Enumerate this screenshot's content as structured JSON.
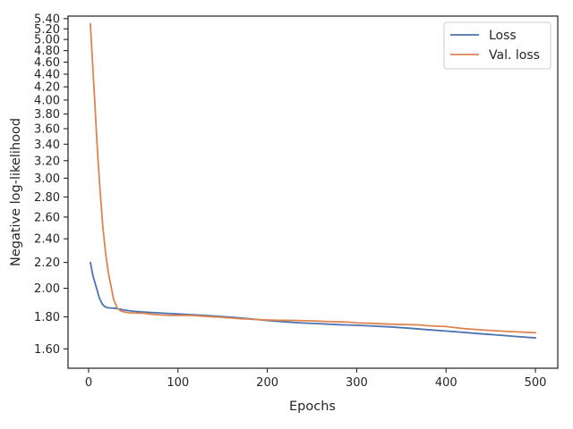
{
  "chart_data": {
    "type": "line",
    "title": "",
    "xlabel": "Epochs",
    "ylabel": "Negative log-likelihood",
    "yscale": "log",
    "xlim": [
      -23,
      525
    ],
    "ylim": [
      1.49,
      5.45
    ],
    "x_ticks": [
      0,
      100,
      200,
      300,
      400,
      500
    ],
    "x_tick_labels": [
      "0",
      "100",
      "200",
      "300",
      "400",
      "500"
    ],
    "y_ticks": [
      1.6,
      1.8,
      2.0,
      2.2,
      2.4,
      2.6,
      2.8,
      3.0,
      3.2,
      3.4,
      3.6,
      3.8,
      4.0,
      4.2,
      4.4,
      4.6,
      4.8,
      5.0,
      5.2,
      5.4
    ],
    "y_tick_labels": [
      "1.60",
      "1.80",
      "2.00",
      "2.20",
      "2.40",
      "2.60",
      "2.80",
      "3.00",
      "3.20",
      "3.40",
      "3.60",
      "3.80",
      "4.00",
      "4.20",
      "4.40",
      "4.60",
      "4.80",
      "5.00",
      "5.20",
      "5.40"
    ],
    "grid": false,
    "legend_position": "top-right",
    "series": [
      {
        "name": "Loss",
        "color": "#4c72b0",
        "x": [
          2,
          5,
          9,
          12,
          15,
          18,
          21,
          25,
          30,
          35,
          40,
          50,
          60,
          75,
          90,
          100,
          120,
          140,
          160,
          180,
          200,
          220,
          240,
          260,
          280,
          300,
          320,
          340,
          360,
          380,
          400,
          420,
          440,
          460,
          480,
          500
        ],
        "y": [
          2.2,
          2.09,
          2.0,
          1.93,
          1.89,
          1.87,
          1.862,
          1.86,
          1.858,
          1.852,
          1.846,
          1.838,
          1.833,
          1.828,
          1.823,
          1.82,
          1.813,
          1.806,
          1.798,
          1.788,
          1.776,
          1.767,
          1.76,
          1.755,
          1.749,
          1.745,
          1.74,
          1.734,
          1.726,
          1.717,
          1.709,
          1.7,
          1.691,
          1.683,
          1.674,
          1.666
        ]
      },
      {
        "name": "Val. loss",
        "color": "#dd8452",
        "x": [
          2,
          4,
          7,
          10,
          13,
          16,
          19,
          22,
          25,
          28,
          32,
          36,
          40,
          45,
          50,
          60,
          70,
          80,
          90,
          100,
          110,
          120,
          130,
          150,
          170,
          190,
          210,
          230,
          250,
          270,
          290,
          300,
          320,
          340,
          370,
          380,
          400,
          420,
          440,
          460,
          480,
          500
        ],
        "y": [
          5.3,
          4.7,
          3.95,
          3.3,
          2.85,
          2.5,
          2.28,
          2.12,
          2.02,
          1.92,
          1.86,
          1.84,
          1.833,
          1.828,
          1.826,
          1.825,
          1.818,
          1.813,
          1.81,
          1.81,
          1.811,
          1.808,
          1.804,
          1.797,
          1.788,
          1.782,
          1.778,
          1.777,
          1.774,
          1.769,
          1.766,
          1.761,
          1.757,
          1.752,
          1.748,
          1.742,
          1.737,
          1.724,
          1.716,
          1.709,
          1.703,
          1.698
        ]
      }
    ]
  }
}
